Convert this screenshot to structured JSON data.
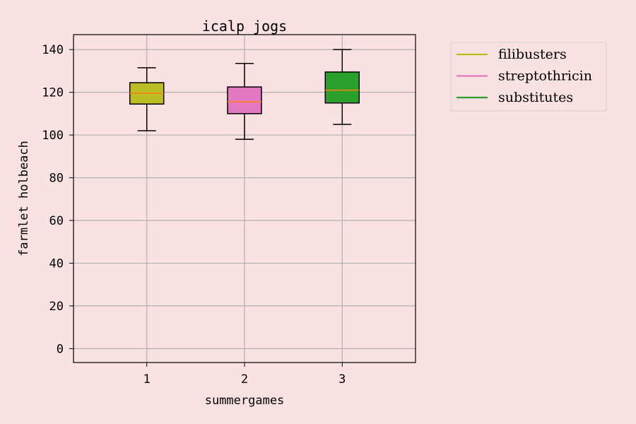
{
  "chart_data": {
    "type": "box",
    "title": "icalp jogs",
    "xlabel": "summergames",
    "ylabel": "farmlet holbeach",
    "ylim": [
      -6.5,
      147
    ],
    "yticks": [
      "0",
      "20",
      "40",
      "60",
      "80",
      "100",
      "120",
      "140"
    ],
    "categories": [
      "1",
      "2",
      "3"
    ],
    "grid": true,
    "legend_position": "outside-right-top",
    "series": [
      {
        "name": "filibusters",
        "color": "#bcbd22",
        "whisker_low": 102,
        "q1": 114.5,
        "median": 119.5,
        "q3": 124.5,
        "whisker_high": 131.5
      },
      {
        "name": "streptothricin",
        "color": "#e377c2",
        "whisker_low": 98,
        "q1": 110,
        "median": 115.5,
        "q3": 122.5,
        "whisker_high": 133.5
      },
      {
        "name": "substitutes",
        "color": "#2ca02c",
        "whisker_low": 105,
        "q1": 115,
        "median": 121,
        "q3": 129.5,
        "whisker_high": 140
      }
    ],
    "median_color": "#ff7f0e"
  }
}
